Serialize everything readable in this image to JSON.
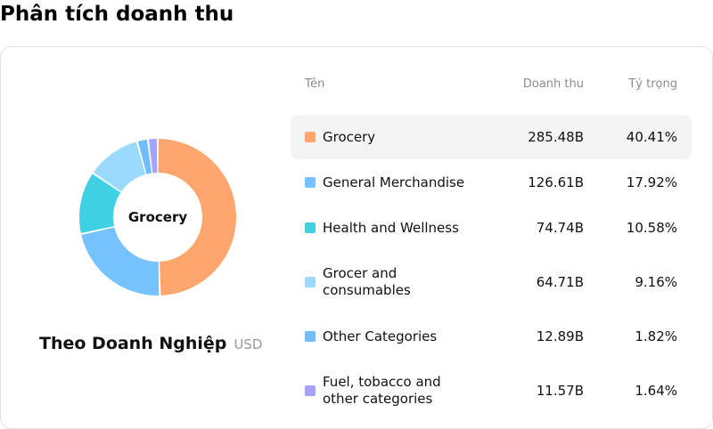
{
  "page_title": "Phân tích doanh thu",
  "donut": {
    "center_label": "Grocery",
    "subtitle": "Theo Doanh Nghiệp",
    "unit": "USD"
  },
  "table": {
    "headers": {
      "name": "Tên",
      "revenue": "Doanh thu",
      "share": "Tỷ trọng"
    },
    "rows": [
      {
        "name": "Grocery",
        "revenue": "285.48B",
        "share": "40.41%",
        "color": "#FFA66E"
      },
      {
        "name": "General Merchandise",
        "revenue": "126.61B",
        "share": "17.92%",
        "color": "#75C2FF"
      },
      {
        "name": "Health and Wellness",
        "revenue": "74.74B",
        "share": "10.58%",
        "color": "#40D0E6"
      },
      {
        "name": "Grocer and consumables",
        "revenue": "64.71B",
        "share": "9.16%",
        "color": "#9BDAFF"
      },
      {
        "name": "Other Categories",
        "revenue": "12.89B",
        "share": "1.82%",
        "color": "#72BEFC"
      },
      {
        "name": "Fuel, tobacco and other categories",
        "revenue": "11.57B",
        "share": "1.64%",
        "color": "#A4A4FF"
      }
    ]
  },
  "chart_data": {
    "type": "pie",
    "categories": [
      "Grocery",
      "General Merchandise",
      "Health and Wellness",
      "Grocer and consumables",
      "Other Categories",
      "Fuel, tobacco and other categories"
    ],
    "values": [
      285.48,
      126.61,
      74.74,
      64.71,
      12.89,
      11.57
    ],
    "shares": [
      40.41,
      17.92,
      10.58,
      9.16,
      1.82,
      1.64
    ],
    "colors": [
      "#FFA66E",
      "#75C2FF",
      "#40D0E6",
      "#9BDAFF",
      "#72BEFC",
      "#A4A4FF"
    ],
    "highlighted": "Grocery"
  }
}
